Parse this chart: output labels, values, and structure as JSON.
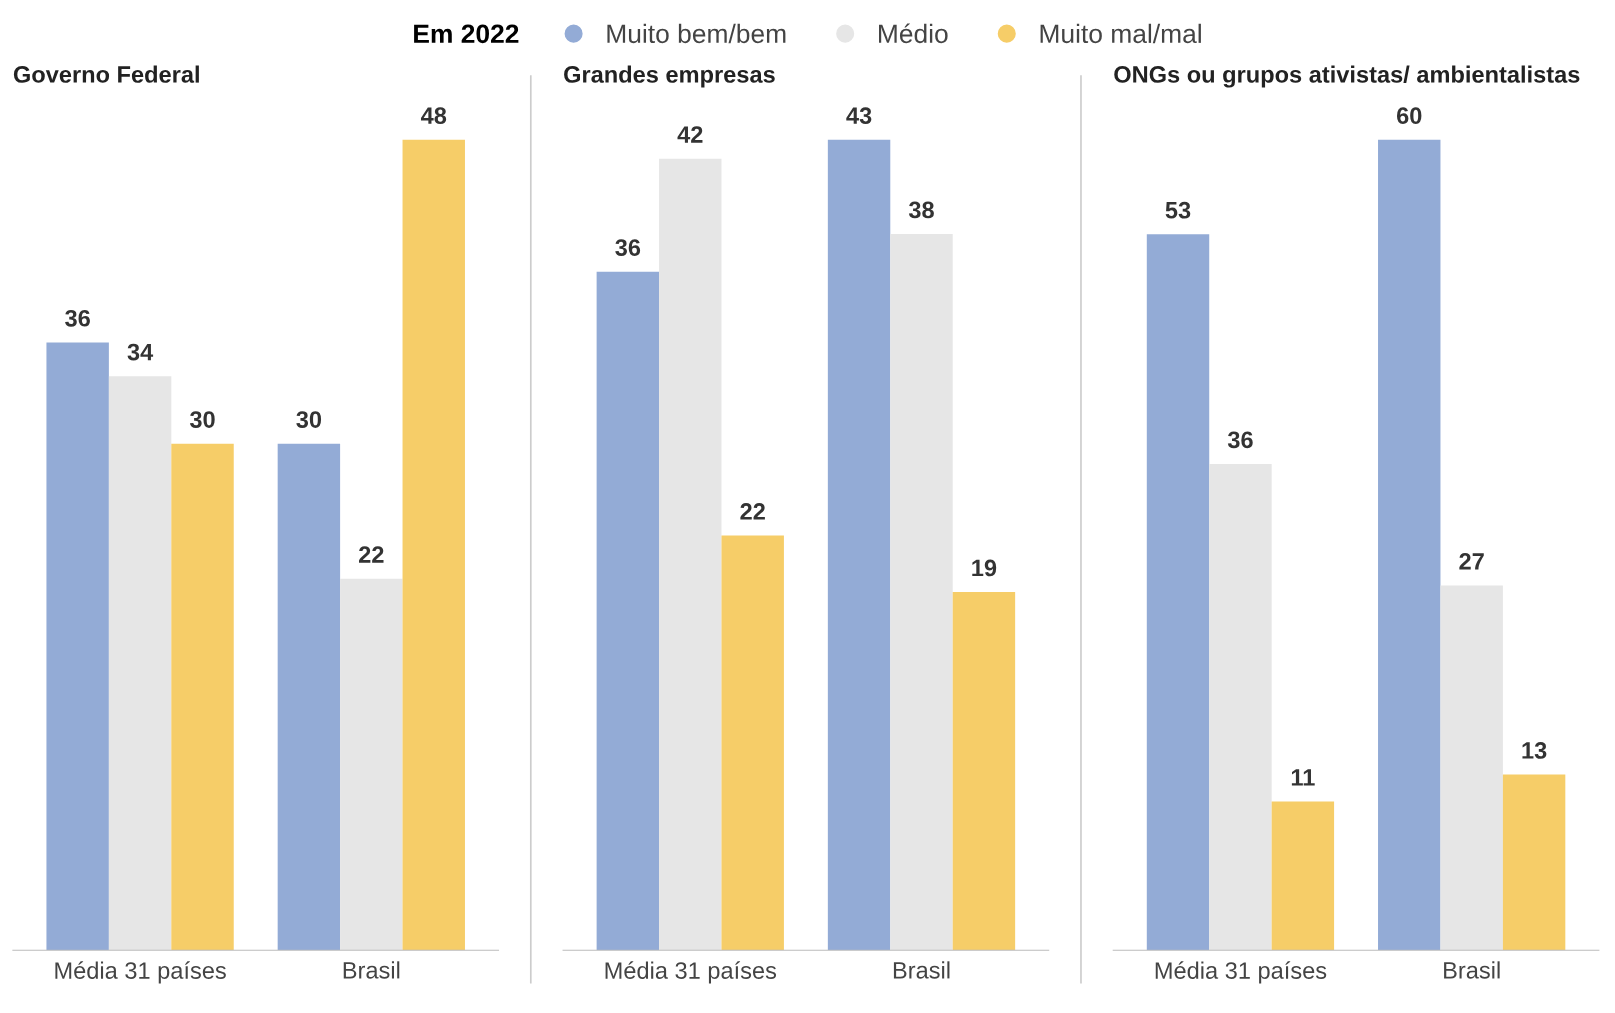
{
  "chart_data": [
    {
      "type": "bar",
      "title": "Governo Federal",
      "categories": [
        "Média 31 países",
        "Brasil"
      ],
      "legend_title": "Em 2022",
      "legend": "top",
      "data_labels": true,
      "tick_labels": "x",
      "series": [
        {
          "name": "Muito bem/bem",
          "color": "#93abd6",
          "values": [
            36,
            30
          ]
        },
        {
          "name": "Médio",
          "color": "#e6e6e6",
          "values": [
            34,
            22
          ]
        },
        {
          "name": "Muito mal/mal",
          "color": "#f6cd68",
          "values": [
            30,
            48
          ]
        }
      ]
    },
    {
      "type": "bar",
      "title": "Grandes empresas",
      "categories": [
        "Média 31 países",
        "Brasil"
      ],
      "data_labels": true,
      "tick_labels": "x",
      "series": [
        {
          "color": "#93abd6",
          "values": [
            36,
            43
          ]
        },
        {
          "color": "#e6e6e6",
          "values": [
            42,
            38
          ]
        },
        {
          "color": "#f6cd68",
          "values": [
            22,
            19
          ]
        }
      ]
    },
    {
      "type": "bar",
      "title": "ONGs ou grupos ativistas/ ambientalistas",
      "categories": [
        "Média 31 países",
        "Brasil"
      ],
      "data_labels": true,
      "tick_labels": "x",
      "series": [
        {
          "color": "#93abd6",
          "values": [
            53,
            60
          ]
        },
        {
          "color": "#e6e6e6",
          "values": [
            36,
            27
          ]
        },
        {
          "color": "#f6cd68",
          "values": [
            11,
            13
          ]
        }
      ]
    }
  ]
}
